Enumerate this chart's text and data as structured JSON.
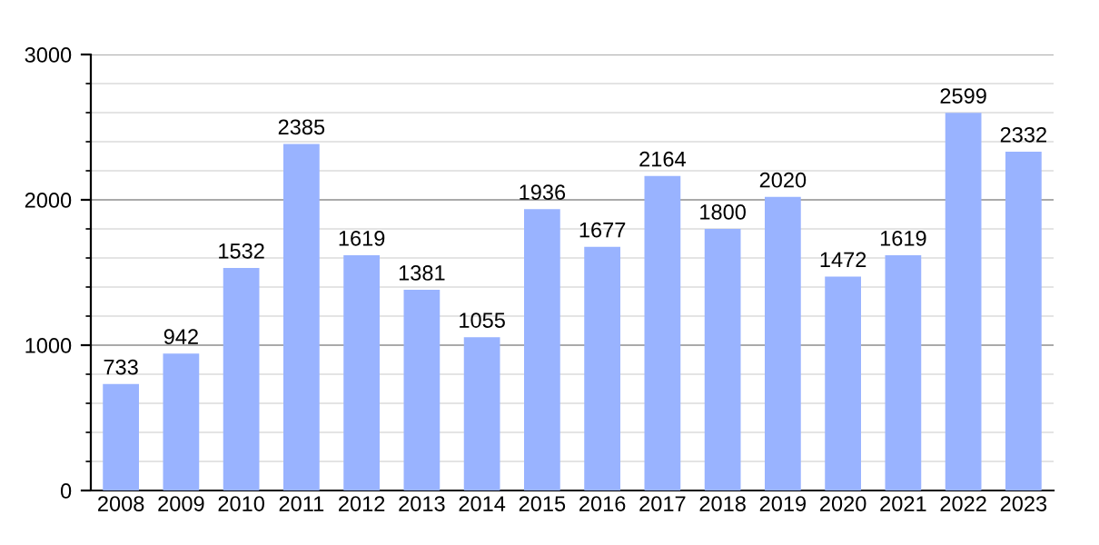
{
  "chart_data": {
    "type": "bar",
    "categories": [
      "2008",
      "2009",
      "2010",
      "2011",
      "2012",
      "2013",
      "2014",
      "2015",
      "2016",
      "2017",
      "2018",
      "2019",
      "2020",
      "2021",
      "2022",
      "2023"
    ],
    "values": [
      733,
      942,
      1532,
      2385,
      1619,
      1381,
      1055,
      1936,
      1677,
      2164,
      1800,
      2020,
      1472,
      1619,
      2599,
      2332
    ],
    "color": "#99b3ff",
    "ylim": [
      0,
      3000
    ],
    "yticks": [
      0,
      1000,
      2000,
      3000
    ],
    "grid": "y",
    "data_labels": true
  }
}
